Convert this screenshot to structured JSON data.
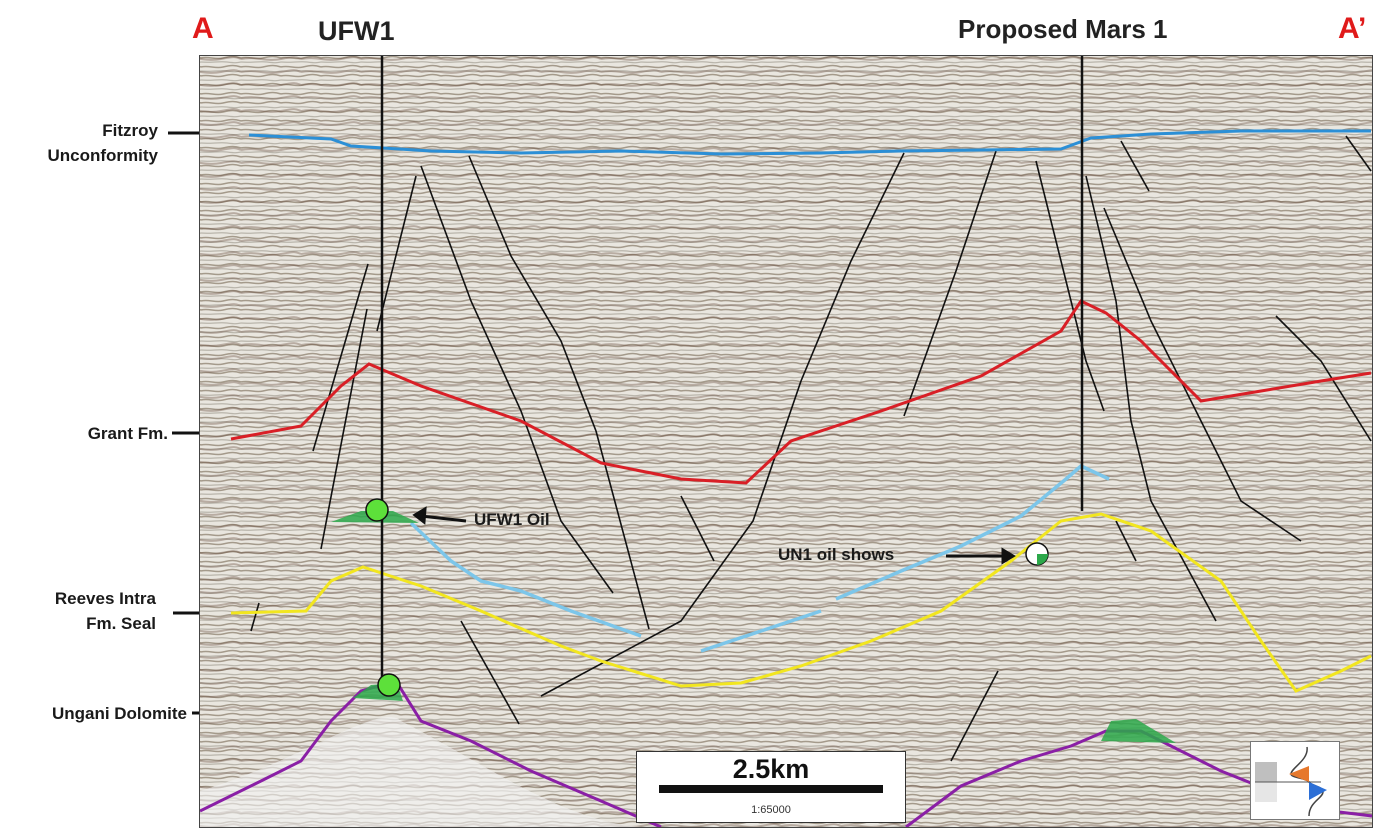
{
  "section": {
    "start_letter": "A",
    "end_letter": "A’"
  },
  "wells": [
    {
      "name": "UFW1"
    },
    {
      "name": "Proposed Mars 1"
    }
  ],
  "horizon_labels": [
    {
      "line1": "Fitzroy",
      "line2": "Unconformity"
    },
    {
      "line1": "Grant Fm.",
      "line2": ""
    },
    {
      "line1": "Reeves Intra",
      "line2": "Fm. Seal"
    },
    {
      "line1": "Ungani Dolomite",
      "line2": ""
    }
  ],
  "annotations": {
    "ufw1_oil": "UFW1 Oil",
    "un1_oil_shows": "UN1 oil shows"
  },
  "scale_bar": {
    "length_label": "2.5km",
    "ratio_label": "1:65000"
  },
  "colors": {
    "fitzroy_unconformity": "#2b8fd6",
    "grant_fm": "#d91f26",
    "reeves_intra_seal": "#f2e61f",
    "intra_reeves_light_blue": "#7cc6ea",
    "ungani_dolomite": "#8a1fa6",
    "oil_fill": "#2ca84a",
    "well_marker": "#5de03a",
    "fault": "#111111",
    "section_letters": "#e01a1a"
  }
}
